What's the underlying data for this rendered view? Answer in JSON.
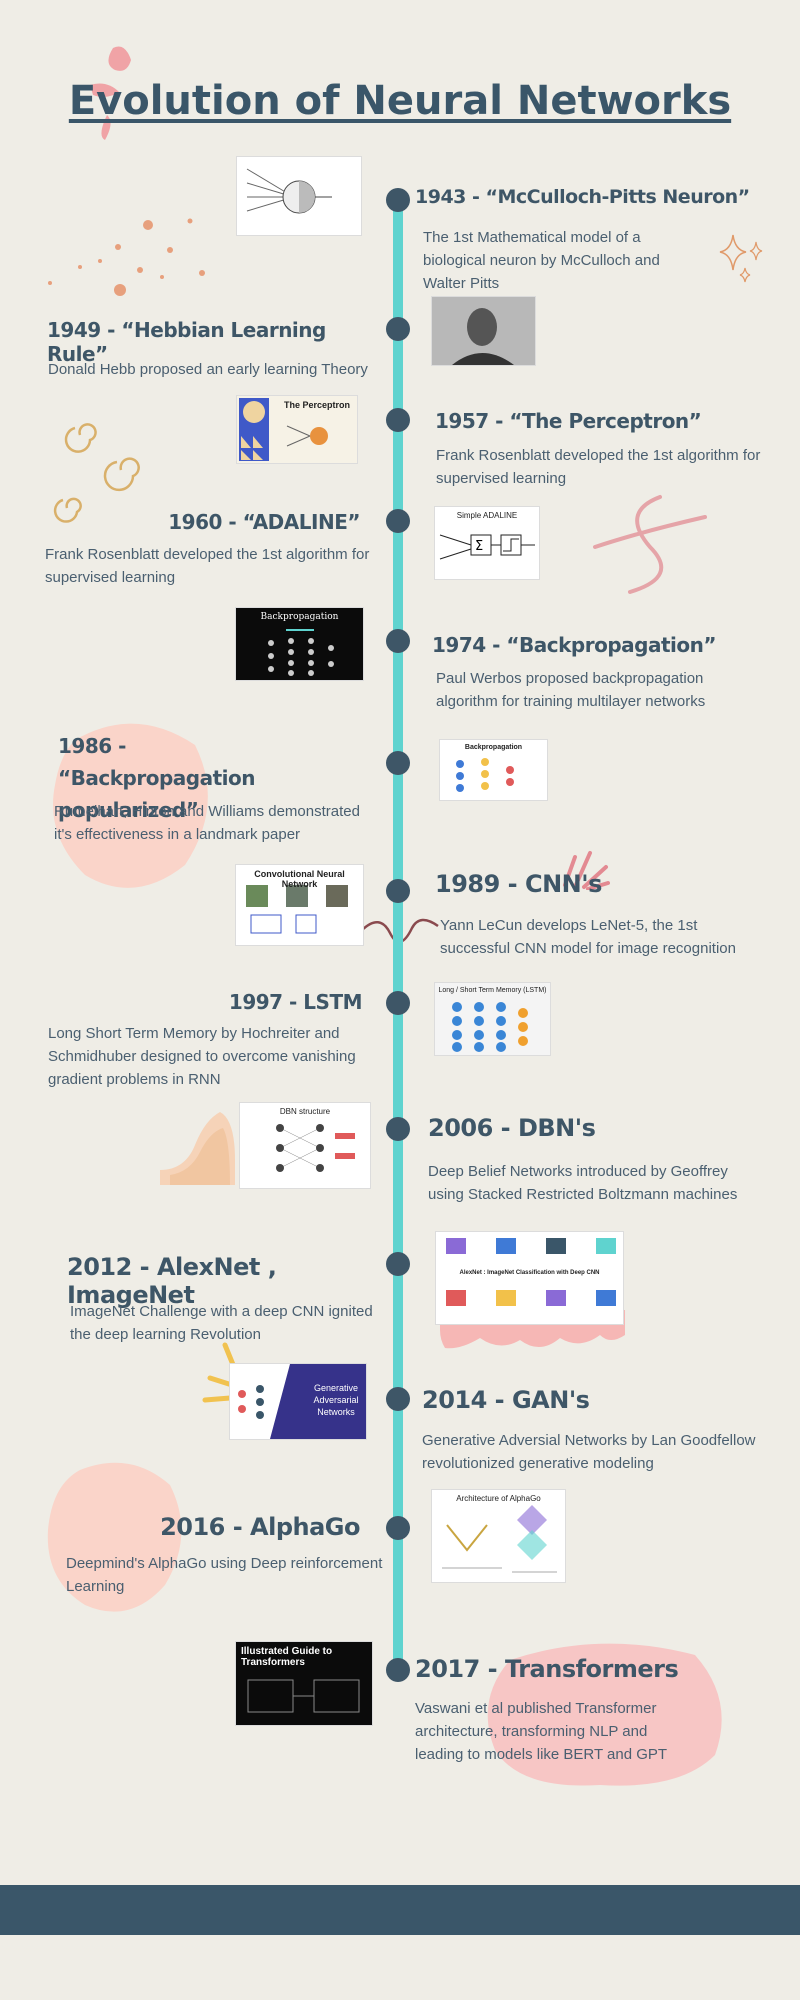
{
  "title": "Evolution of Neural Networks",
  "colors": {
    "background": "#efede6",
    "timeline": "#5fd3cf",
    "node": "#3e5667",
    "heading": "#3e5667",
    "footer": "#3a5669",
    "accent_pink": "#f4b8b1",
    "accent_orange": "#e09a6a"
  },
  "events": [
    {
      "heading": "1943 - “McCulloch-Pitts Neuron”",
      "desc": "The 1st Mathematical model of a biological neuron by McCulloch and Walter Pitts"
    },
    {
      "heading": "1949 - “Hebbian Learning Rule”",
      "desc": "Donald Hebb proposed an early learning Theory"
    },
    {
      "heading": "1957 - “The Perceptron”",
      "desc": "Frank Rosenblatt developed the 1st algorithm for supervised learning"
    },
    {
      "heading": "1960 - “ADALINE”",
      "desc": "Frank Rosenblatt developed the 1st algorithm for supervised learning"
    },
    {
      "heading": "1974 - “Backpropagation”",
      "desc": "Paul Werbos proposed backpropagation algorithm for training multilayer networks"
    },
    {
      "heading": "1986 - “Backpropagation popularized”",
      "desc": "Rumelhart, Hinton and Williams demonstrated it's effectiveness in a landmark paper"
    },
    {
      "heading": "1989 - CNN's",
      "desc": "Yann LeCun develops LeNet-5, the 1st successful CNN model for image recognition"
    },
    {
      "heading": "1997 - LSTM",
      "desc": "Long Short Term Memory by Hochreiter and Schmidhuber designed to overcome vanishing gradient problems in RNN"
    },
    {
      "heading": "2006 - DBN's",
      "desc": "Deep Belief Networks introduced by Geoffrey using Stacked Restricted Boltzmann machines"
    },
    {
      "heading": "2012 - AlexNet , ImageNet",
      "desc": "ImageNet Challenge with a deep CNN ignited the deep learning Revolution"
    },
    {
      "heading": "2014 - GAN's",
      "desc": "Generative Adversial Networks by Lan Goodfellow revolutionized generative modeling"
    },
    {
      "heading": "2016 - AlphaGo",
      "desc": "Deepmind's AlphaGo using Deep reinforcement Learning"
    },
    {
      "heading": "2017 - Transformers",
      "desc": "Vaswani et al published Transformer architecture, transforming NLP and leading to models like BERT and GPT"
    }
  ],
  "images": {
    "perceptron": "The Perceptron",
    "adaline": "Simple ADALINE",
    "backprop1974": "Backpropagation",
    "backprop1986": "Backpropagation",
    "cnn": "Convolutional Neural Network",
    "lstm": "Long / Short Term Memory (LSTM)",
    "dbn": "DBN structure",
    "alexnet": "AlexNet : ImageNet Classification with Deep CNN",
    "gan": "Generative Adversarial Networks",
    "alphago": "Architecture of AlphaGo",
    "transformers": "Illustrated Guide to Transformers"
  }
}
